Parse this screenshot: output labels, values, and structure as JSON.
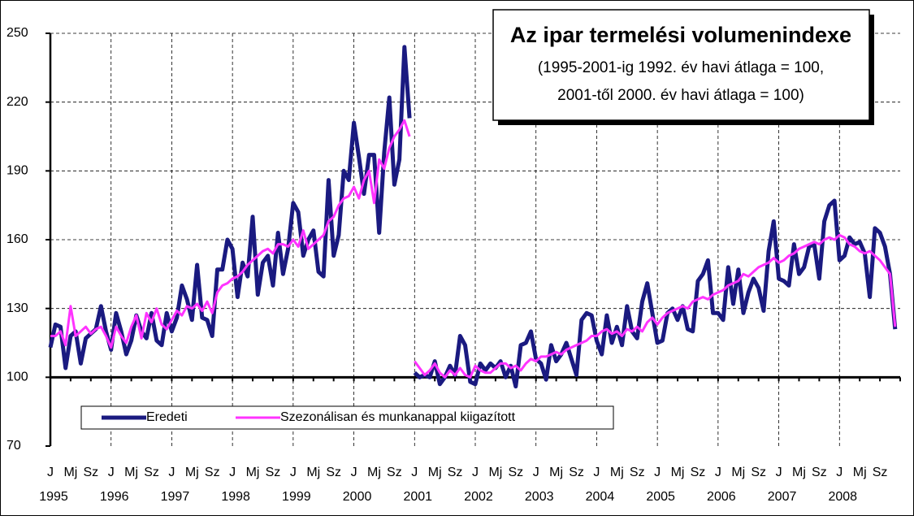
{
  "chart_data": {
    "type": "line",
    "title": "Az ipar termelési volumenindexe",
    "subtitle": [
      "(1995-2001-ig 1992. év havi átlaga = 100,",
      "2001-től 2000. év havi átlaga = 100)"
    ],
    "categories": [
      "J",
      null,
      null,
      null,
      "Mj",
      null,
      null,
      null,
      "Sz",
      null,
      null,
      null,
      "J",
      null,
      null,
      null,
      "Mj",
      null,
      null,
      null,
      "Sz",
      null,
      null,
      null,
      "J",
      null,
      null,
      null,
      "Mj",
      null,
      null,
      null,
      "Sz",
      null,
      null,
      null,
      "J",
      null,
      null,
      null,
      "Mj",
      null,
      null,
      null,
      "Sz",
      null,
      null,
      null,
      "J",
      null,
      null,
      null,
      "Mj",
      null,
      null,
      null,
      "Sz",
      null,
      null,
      null,
      "J",
      null,
      null,
      null,
      "Mj",
      null,
      null,
      null,
      "Sz",
      null,
      null,
      null,
      "J",
      null,
      null,
      null,
      "Mj",
      null,
      null,
      null,
      "Sz",
      null,
      null,
      null,
      "J",
      null,
      null,
      null,
      "Mj",
      null,
      null,
      null,
      "Sz",
      null,
      null,
      null,
      "J",
      null,
      null,
      null,
      "Mj",
      null,
      null,
      null,
      "Sz",
      null,
      null,
      null,
      "J",
      null,
      null,
      null,
      "Mj",
      null,
      null,
      null,
      "Sz",
      null,
      null,
      null,
      "J",
      null,
      null,
      null,
      "Mj",
      null,
      null,
      null,
      "Sz",
      null,
      null,
      null,
      "J",
      null,
      null,
      null,
      "Mj",
      null,
      null,
      null,
      "Sz",
      null,
      null,
      null,
      "J",
      null,
      null,
      null,
      "Mj",
      null,
      null,
      null,
      "Sz",
      null,
      null,
      null,
      "J",
      null,
      null,
      null,
      "Mj",
      null,
      null,
      null,
      "Sz",
      null,
      null,
      null
    ],
    "years": [
      "1995",
      "1996",
      "1997",
      "1998",
      "1999",
      "2000",
      "2001",
      "2002",
      "2003",
      "2004",
      "2005",
      "2006",
      "2007",
      "2008"
    ],
    "segment_starts": [
      0,
      72
    ],
    "series": [
      {
        "name": "Eredeti",
        "color": "#1a1a80",
        "values": [
          113,
          123,
          122,
          104,
          118,
          120,
          106,
          117,
          119,
          121,
          131,
          120,
          112,
          128,
          120,
          110,
          116,
          127,
          120,
          117,
          128,
          116,
          114,
          128,
          120,
          126,
          140,
          134,
          125,
          149,
          126,
          125,
          118,
          147,
          147,
          160,
          156,
          135,
          150,
          144,
          170,
          136,
          150,
          153,
          140,
          163,
          145,
          156,
          176,
          172,
          153,
          160,
          164,
          146,
          144,
          186,
          153,
          162,
          190,
          186,
          211,
          196,
          180,
          197,
          197,
          163,
          198,
          222,
          184,
          195,
          244,
          213,
          102,
          100,
          101,
          100,
          107,
          97,
          100,
          105,
          101,
          118,
          114,
          98,
          97,
          106,
          103,
          106,
          104,
          107,
          100,
          105,
          96,
          114,
          115,
          120,
          108,
          106,
          99,
          114,
          107,
          110,
          115,
          108,
          101,
          125,
          128,
          127,
          116,
          110,
          127,
          115,
          122,
          114,
          131,
          120,
          117,
          133,
          141,
          128,
          115,
          116,
          128,
          130,
          125,
          131,
          121,
          120,
          142,
          145,
          151,
          128,
          128,
          125,
          148,
          132,
          147,
          128,
          137,
          143,
          139,
          129,
          155,
          168,
          143,
          142,
          140,
          158,
          145,
          148,
          157,
          158,
          143,
          168,
          175,
          177,
          151,
          153,
          161,
          158,
          159,
          154,
          135,
          165,
          163,
          157,
          145,
          121
        ]
      },
      {
        "name": "Szezonálisan és munkanappal kiigazított",
        "color": "#ff33ff",
        "values": [
          118,
          118,
          120,
          114,
          131,
          118,
          120,
          122,
          119,
          121,
          122,
          118,
          113,
          122,
          118,
          115,
          122,
          127,
          117,
          128,
          124,
          130,
          123,
          121,
          125,
          129,
          127,
          131,
          130,
          132,
          129,
          133,
          128,
          137,
          140,
          141,
          143,
          144,
          146,
          149,
          151,
          153,
          155,
          156,
          154,
          158,
          158,
          157,
          160,
          157,
          164,
          156,
          158,
          160,
          162,
          168,
          170,
          175,
          178,
          179,
          183,
          178,
          186,
          190,
          176,
          195,
          191,
          200,
          205,
          208,
          212,
          205,
          107,
          104,
          101,
          103,
          106,
          102,
          100,
          103,
          101,
          104,
          101,
          100,
          105,
          103,
          102,
          102,
          104,
          106,
          106,
          104,
          105,
          103,
          106,
          108,
          107,
          109,
          109,
          110,
          111,
          110,
          112,
          113,
          114,
          115,
          116,
          118,
          118,
          120,
          121,
          119,
          120,
          118,
          121,
          120,
          122,
          120,
          124,
          126,
          123,
          126,
          128,
          129,
          130,
          131,
          130,
          133,
          134,
          135,
          134,
          136,
          137,
          138,
          140,
          141,
          142,
          145,
          144,
          146,
          148,
          149,
          150,
          152,
          150,
          151,
          153,
          154,
          156,
          157,
          158,
          159,
          158,
          160,
          161,
          160,
          162,
          161,
          158,
          157,
          155,
          154,
          155,
          153,
          151,
          148,
          145,
          122
        ]
      }
    ],
    "ylim": [
      70,
      250
    ],
    "yticks": [
      70,
      100,
      130,
      160,
      190,
      220,
      250
    ],
    "grid": true
  }
}
